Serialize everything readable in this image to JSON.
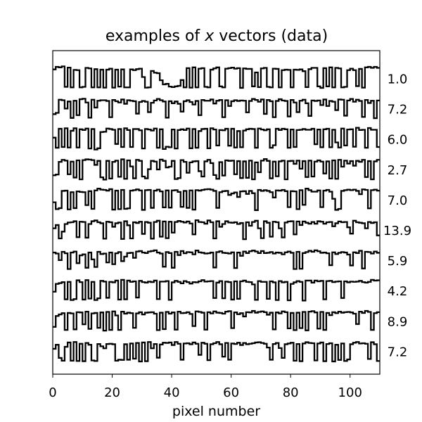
{
  "chart_data": {
    "type": "line",
    "title_prefix": "examples of ",
    "title_var": "x",
    "title_suffix": " vectors (data)",
    "xlabel": "pixel number",
    "xlim": [
      0,
      110
    ],
    "xticks": [
      0,
      20,
      40,
      60,
      80,
      100
    ],
    "grid": false,
    "series": [
      {
        "label": "1.0",
        "values": [
          0.87,
          0.97,
          0.95,
          0.99,
          0.18,
          0.94,
          0.16,
          0.85,
          0.84,
          0.16,
          0.18,
          0.93,
          0.91,
          0.16,
          0.88,
          0.16,
          0.86,
          0.15,
          0.86,
          0.9,
          0.15,
          0.86,
          0.19,
          0.87,
          0.16,
          0.16,
          0.87,
          0.84,
          0.88,
          0.9,
          0.57,
          0.15,
          0.16,
          0.81,
          0.74,
          0.72,
          0.44,
          0.28,
          0.3,
          0.19,
          0.17,
          0.2,
          0.22,
          0.45,
          0.16,
          0.92,
          0.15,
          0.95,
          0.16,
          0.9,
          0.92,
          0.18,
          0.16,
          0.86,
          0.91,
          0.95,
          0.2,
          0.16,
          0.9,
          0.92,
          0.94,
          0.9,
          0.92,
          0.14,
          0.91,
          0.89,
          0.89,
          0.2,
          0.75,
          0.17,
          0.91,
          0.93,
          0.18,
          0.16,
          0.9,
          0.89,
          0.16,
          0.84,
          0.86,
          0.85,
          0.16,
          0.86,
          0.85,
          0.87,
          0.8,
          0.17,
          0.88,
          0.93,
          0.93,
          0.2,
          0.14,
          0.92,
          0.2,
          0.95,
          0.16,
          0.93,
          0.91,
          0.16,
          0.18,
          0.84,
          0.9,
          0.84,
          0.21,
          0.89,
          0.15,
          0.95,
          0.97,
          0.93,
          0.97,
          0.93
        ]
      },
      {
        "label": "7.2",
        "values": [
          0.3,
          0.35,
          0.87,
          0.85,
          0.52,
          0.8,
          0.15,
          0.83,
          0.26,
          0.89,
          0.91,
          0.76,
          0.16,
          0.87,
          0.56,
          0.83,
          0.85,
          0.85,
          0.82,
          0.18,
          0.86,
          0.81,
          0.76,
          0.88,
          0.71,
          0.85,
          0.83,
          0.81,
          0.32,
          0.78,
          0.82,
          0.79,
          0.38,
          0.75,
          0.84,
          0.9,
          0.85,
          0.8,
          0.16,
          0.81,
          0.73,
          0.8,
          0.71,
          0.4,
          0.81,
          0.85,
          0.78,
          0.68,
          0.82,
          0.26,
          0.86,
          0.83,
          0.83,
          0.88,
          0.72,
          0.83,
          0.86,
          0.18,
          0.85,
          0.62,
          0.81,
          0.85,
          0.82,
          0.84,
          0.83,
          0.37,
          0.82,
          0.9,
          0.86,
          0.79,
          0.88,
          0.31,
          0.86,
          0.81,
          0.18,
          0.82,
          0.89,
          0.84,
          0.82,
          0.21,
          0.86,
          0.76,
          0.38,
          0.83,
          0.87,
          0.73,
          0.23,
          0.84,
          0.82,
          0.84,
          0.66,
          0.88,
          0.62,
          0.82,
          0.79,
          0.46,
          0.88,
          0.87,
          0.24,
          0.84,
          0.9,
          0.79,
          0.87,
          0.82,
          0.19,
          0.86,
          0.74,
          0.83,
          0.14,
          0.84
        ]
      },
      {
        "label": "6.0",
        "values": [
          0.57,
          0.17,
          0.92,
          0.2,
          0.94,
          0.18,
          0.84,
          0.94,
          0.18,
          0.9,
          0.87,
          0.93,
          0.14,
          0.91,
          0.1,
          0.15,
          0.79,
          0.8,
          0.93,
          0.91,
          0.88,
          0.32,
          0.91,
          0.2,
          0.94,
          0.87,
          0.2,
          0.91,
          0.91,
          0.86,
          0.14,
          0.91,
          0.89,
          0.85,
          0.93,
          0.17,
          0.9,
          0.12,
          0.21,
          0.19,
          0.89,
          0.14,
          0.87,
          0.9,
          0.87,
          0.93,
          0.15,
          0.91,
          0.17,
          0.83,
          0.91,
          0.92,
          0.15,
          0.94,
          0.89,
          0.26,
          0.87,
          0.86,
          0.92,
          0.25,
          0.92,
          0.18,
          0.83,
          0.19,
          0.85,
          0.9,
          0.92,
          0.91,
          0.17,
          0.93,
          0.89,
          0.86,
          0.9,
          0.17,
          0.27,
          0.92,
          0.87,
          0.92,
          0.9,
          0.17,
          0.89,
          0.2,
          0.87,
          0.88,
          0.91,
          0.88,
          0.88,
          0.92,
          0.31,
          0.89,
          0.19,
          0.9,
          0.92,
          0.19,
          0.88,
          0.38,
          0.18,
          0.93,
          0.26,
          0.89,
          0.9,
          0.21,
          0.96,
          0.87,
          0.88,
          0.17,
          0.95,
          0.88,
          0.88,
          0.2
        ]
      },
      {
        "label": "2.7",
        "values": [
          0.28,
          0.31,
          0.81,
          0.89,
          0.86,
          0.32,
          0.82,
          0.19,
          0.87,
          0.12,
          0.88,
          0.91,
          0.9,
          0.88,
          0.69,
          0.85,
          0.2,
          0.11,
          0.85,
          0.15,
          0.81,
          0.86,
          0.22,
          0.91,
          0.14,
          0.87,
          0.63,
          0.16,
          0.89,
          0.85,
          0.23,
          0.16,
          0.52,
          0.85,
          0.82,
          0.51,
          0.9,
          0.85,
          0.59,
          0.62,
          0.85,
          0.13,
          0.17,
          0.88,
          0.81,
          0.38,
          0.79,
          0.83,
          0.84,
          0.44,
          0.23,
          0.83,
          0.89,
          0.76,
          0.29,
          0.14,
          0.8,
          0.27,
          0.87,
          0.85,
          0.86,
          0.32,
          0.84,
          0.17,
          0.83,
          0.18,
          0.86,
          0.12,
          0.79,
          0.4,
          0.86,
          0.92,
          0.85,
          0.16,
          0.82,
          0.24,
          0.83,
          0.86,
          0.12,
          0.84,
          0.85,
          0.73,
          0.86,
          0.54,
          0.84,
          0.21,
          0.86,
          0.23,
          0.82,
          0.87,
          0.82,
          0.35,
          0.83,
          0.15,
          0.87,
          0.14,
          0.89,
          0.62,
          0.86,
          0.74,
          0.84,
          0.66,
          0.85,
          0.81,
          0.89,
          0.21,
          0.84,
          0.12,
          0.83,
          0.89
        ]
      },
      {
        "label": "7.0",
        "values": [
          0.41,
          0.14,
          0.18,
          0.86,
          0.87,
          0.13,
          0.81,
          0.18,
          0.84,
          0.82,
          0.81,
          0.3,
          0.85,
          0.15,
          0.88,
          0.95,
          0.91,
          0.9,
          0.87,
          0.93,
          0.12,
          0.87,
          0.14,
          0.9,
          0.15,
          0.17,
          0.87,
          0.89,
          0.92,
          0.88,
          0.11,
          0.89,
          0.9,
          0.19,
          0.87,
          0.91,
          0.84,
          0.21,
          0.88,
          0.2,
          0.88,
          0.89,
          0.82,
          0.23,
          0.86,
          0.19,
          0.88,
          0.12,
          0.89,
          0.87,
          0.9,
          0.92,
          0.93,
          0.91,
          0.86,
          0.19,
          0.81,
          0.85,
          0.86,
          0.7,
          0.76,
          0.8,
          0.62,
          0.84,
          0.85,
          0.74,
          0.86,
          0.77,
          0.1,
          0.9,
          0.86,
          0.89,
          0.86,
          0.81,
          0.6,
          0.88,
          0.87,
          0.9,
          0.85,
          0.22,
          0.85,
          0.84,
          0.14,
          0.89,
          0.31,
          0.95,
          0.89,
          0.83,
          0.83,
          0.88,
          0.22,
          0.87,
          0.9,
          0.83,
          0.55,
          0.11,
          0.15,
          0.86,
          0.89,
          0.91,
          0.89,
          0.91,
          0.86,
          0.73,
          0.92,
          0.9,
          0.17,
          0.89,
          0.91,
          0.87
        ]
      },
      {
        "label": "13.9",
        "values": [
          0.58,
          0.71,
          0.18,
          0.45,
          0.75,
          0.81,
          0.82,
          0.86,
          0.23,
          0.84,
          0.83,
          0.21,
          0.75,
          0.86,
          0.89,
          0.82,
          0.78,
          0.17,
          0.84,
          0.82,
          0.64,
          0.78,
          0.81,
          0.16,
          0.86,
          0.7,
          0.18,
          0.82,
          0.79,
          0.84,
          0.36,
          0.83,
          0.8,
          0.17,
          0.83,
          0.88,
          0.25,
          0.85,
          0.19,
          0.84,
          0.41,
          0.83,
          0.87,
          0.84,
          0.81,
          0.85,
          0.77,
          0.34,
          0.9,
          0.83,
          0.82,
          0.76,
          0.89,
          0.82,
          0.18,
          0.86,
          0.64,
          0.75,
          0.86,
          0.81,
          0.8,
          0.82,
          0.75,
          0.79,
          0.15,
          0.82,
          0.68,
          0.83,
          0.88,
          0.58,
          0.19,
          0.86,
          0.8,
          0.25,
          0.84,
          0.82,
          0.58,
          0.22,
          0.81,
          0.85,
          0.86,
          0.34,
          0.85,
          0.71,
          0.85,
          0.8,
          0.76,
          0.83,
          0.76,
          0.86,
          0.84,
          0.76,
          0.82,
          0.83,
          0.66,
          0.78,
          0.85,
          0.82,
          0.83,
          0.62,
          0.37,
          0.88,
          0.82,
          0.8,
          0.78,
          0.58,
          0.83,
          0.79,
          0.82,
          0.3
        ]
      },
      {
        "label": "5.9",
        "values": [
          0.82,
          0.78,
          0.52,
          0.85,
          0.79,
          0.17,
          0.82,
          0.86,
          0.4,
          0.71,
          0.75,
          0.22,
          0.82,
          0.55,
          0.25,
          0.85,
          0.76,
          0.78,
          0.43,
          0.82,
          0.36,
          0.79,
          0.84,
          0.48,
          0.66,
          0.8,
          0.81,
          0.61,
          0.86,
          0.88,
          0.82,
          0.8,
          0.86,
          0.88,
          0.91,
          0.82,
          0.78,
          0.26,
          0.84,
          0.8,
          0.22,
          0.85,
          0.72,
          0.88,
          0.79,
          0.84,
          0.83,
          0.75,
          0.9,
          0.83,
          0.81,
          0.78,
          0.79,
          0.82,
          0.23,
          0.84,
          0.87,
          0.81,
          0.8,
          0.78,
          0.83,
          0.21,
          0.82,
          0.69,
          0.86,
          0.8,
          0.87,
          0.9,
          0.86,
          0.8,
          0.88,
          0.8,
          0.81,
          0.84,
          0.78,
          0.82,
          0.81,
          0.75,
          0.83,
          0.86,
          0.81,
          0.17,
          0.85,
          0.18,
          0.8,
          0.84,
          0.89,
          0.85,
          0.91,
          0.87,
          0.81,
          0.82,
          0.79,
          0.32,
          0.83,
          0.76,
          0.81,
          0.84,
          0.82,
          0.74,
          0.31,
          0.83,
          0.8,
          0.89,
          0.19,
          0.85,
          0.84,
          0.78,
          0.86,
          0.81
        ]
      },
      {
        "label": "4.2",
        "values": [
          0.47,
          0.78,
          0.81,
          0.85,
          0.17,
          0.86,
          0.14,
          0.18,
          0.92,
          0.85,
          0.16,
          0.93,
          0.2,
          0.86,
          0.14,
          0.21,
          0.9,
          0.87,
          0.23,
          0.86,
          0.84,
          0.91,
          0.16,
          0.94,
          0.17,
          0.91,
          0.86,
          0.88,
          0.24,
          0.9,
          0.85,
          0.83,
          0.87,
          0.85,
          0.91,
          0.18,
          0.87,
          0.87,
          0.89,
          0.15,
          0.84,
          0.9,
          0.86,
          0.8,
          0.89,
          0.85,
          0.79,
          0.85,
          0.84,
          0.88,
          0.93,
          0.87,
          0.88,
          0.89,
          0.22,
          0.83,
          0.89,
          0.21,
          0.87,
          0.85,
          0.16,
          0.88,
          0.19,
          0.88,
          0.91,
          0.86,
          0.85,
          0.76,
          0.15,
          0.89,
          0.86,
          0.86,
          0.19,
          0.88,
          0.84,
          0.14,
          0.89,
          0.84,
          0.86,
          0.13,
          0.78,
          0.84,
          0.89,
          0.86,
          0.12,
          0.91,
          0.91,
          0.83,
          0.91,
          0.88,
          0.9,
          0.17,
          0.89,
          0.9,
          0.85,
          0.87,
          0.88,
          0.22,
          0.88,
          0.84,
          0.87,
          0.86,
          0.87,
          0.9,
          0.85,
          0.83,
          0.86,
          0.94,
          0.91,
          0.92
        ]
      },
      {
        "label": "8.9",
        "values": [
          0.28,
          0.71,
          0.77,
          0.82,
          0.16,
          0.83,
          0.81,
          0.18,
          0.86,
          0.85,
          0.38,
          0.88,
          0.2,
          0.81,
          0.83,
          0.24,
          0.85,
          0.13,
          0.87,
          0.16,
          0.89,
          0.73,
          0.16,
          0.88,
          0.8,
          0.84,
          0.82,
          0.24,
          0.81,
          0.86,
          0.77,
          0.84,
          0.85,
          0.86,
          0.8,
          0.15,
          0.84,
          0.19,
          0.87,
          0.8,
          0.85,
          0.17,
          0.88,
          0.82,
          0.83,
          0.86,
          0.79,
          0.31,
          0.89,
          0.87,
          0.84,
          0.17,
          0.86,
          0.81,
          0.89,
          0.84,
          0.83,
          0.8,
          0.88,
          0.9,
          0.23,
          0.85,
          0.78,
          0.82,
          0.69,
          0.86,
          0.85,
          0.91,
          0.84,
          0.87,
          0.89,
          0.86,
          0.76,
          0.84,
          0.18,
          0.85,
          0.81,
          0.89,
          0.86,
          0.22,
          0.83,
          0.15,
          0.84,
          0.23,
          0.87,
          0.14,
          0.88,
          0.9,
          0.85,
          0.21,
          0.87,
          0.16,
          0.83,
          0.74,
          0.86,
          0.82,
          0.88,
          0.84,
          0.86,
          0.87,
          0.85,
          0.8,
          0.39,
          0.88,
          0.83,
          0.91,
          0.87,
          0.16,
          0.82,
          0.86
        ]
      },
      {
        "label": "7.2",
        "values": [
          0.61,
          0.77,
          0.25,
          0.14,
          0.69,
          0.86,
          0.14,
          0.88,
          0.13,
          0.81,
          0.12,
          0.84,
          0.77,
          0.15,
          0.13,
          0.8,
          0.71,
          0.63,
          0.8,
          0.81,
          0.79,
          0.14,
          0.18,
          0.17,
          0.79,
          0.18,
          0.82,
          0.22,
          0.84,
          0.11,
          0.86,
          0.12,
          0.88,
          0.63,
          0.8,
          0.26,
          0.78,
          0.85,
          0.84,
          0.86,
          0.76,
          0.88,
          0.81,
          0.18,
          0.82,
          0.83,
          0.79,
          0.86,
          0.81,
          0.37,
          0.85,
          0.81,
          0.16,
          0.79,
          0.83,
          0.88,
          0.79,
          0.3,
          0.84,
          0.18,
          0.82,
          0.8,
          0.85,
          0.76,
          0.84,
          0.79,
          0.81,
          0.83,
          0.86,
          0.87,
          0.84,
          0.81,
          0.66,
          0.18,
          0.8,
          0.84,
          0.64,
          0.25,
          0.79,
          0.82,
          0.85,
          0.14,
          0.8,
          0.12,
          0.82,
          0.87,
          0.84,
          0.83,
          0.15,
          0.82,
          0.86,
          0.12,
          0.8,
          0.83,
          0.11,
          0.77,
          0.17,
          0.82,
          0.13,
          0.19,
          0.79,
          0.85,
          0.88,
          0.82,
          0.83,
          0.81,
          0.21,
          0.87,
          0.79,
          0.13
        ]
      }
    ]
  }
}
